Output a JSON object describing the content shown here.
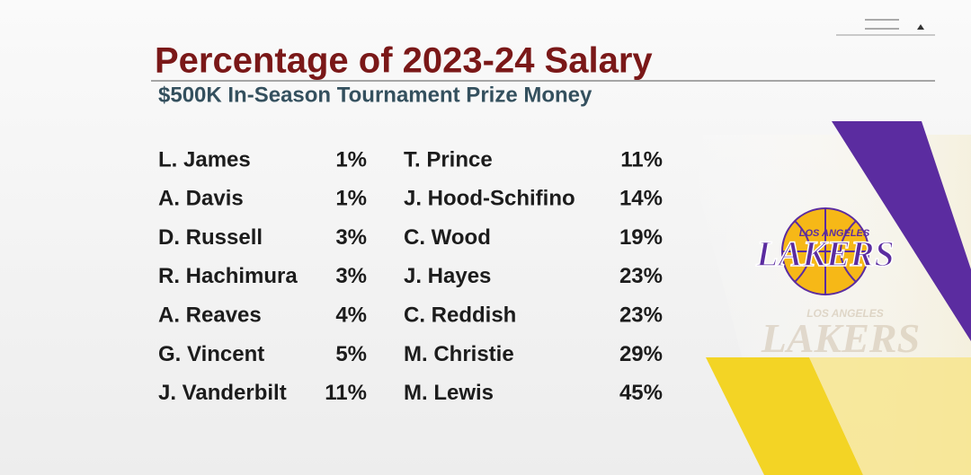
{
  "header": {
    "title": "Percentage of 2023-24 Salary",
    "subtitle": "$500K In-Season Tournament Prize Money"
  },
  "table": {
    "columns": [
      {
        "rows": [
          [
            "L. James",
            "1%"
          ],
          [
            "A. Davis",
            "1%"
          ],
          [
            "D. Russell",
            "3%"
          ],
          [
            "R. Hachimura",
            "3%"
          ],
          [
            "A. Reaves",
            "4%"
          ],
          [
            "G. Vincent",
            "5%"
          ],
          [
            "J. Vanderbilt",
            "11%"
          ]
        ]
      },
      {
        "rows": [
          [
            "T. Prince",
            "11%"
          ],
          [
            "J. Hood-Schifino",
            "14%"
          ],
          [
            "C. Wood",
            "19%"
          ],
          [
            "J. Hayes",
            "23%"
          ],
          [
            "C. Reddish",
            "23%"
          ],
          [
            "M. Christie",
            "29%"
          ],
          [
            "M. Lewis",
            "45%"
          ]
        ]
      }
    ]
  },
  "logo": {
    "city": "LOS ANGELES",
    "team": "LAKERS"
  }
}
